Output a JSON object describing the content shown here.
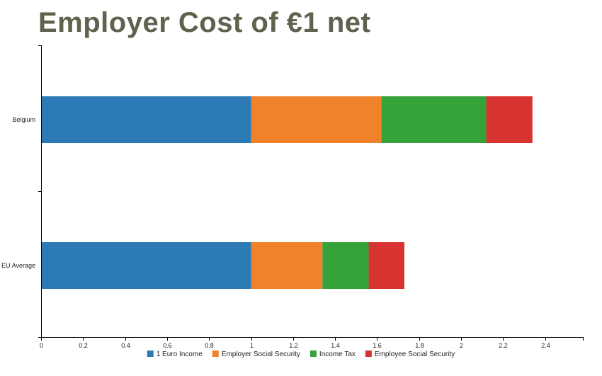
{
  "title": "Employer Cost of €1 net",
  "chart_data": {
    "type": "bar",
    "orientation": "horizontal",
    "stacked": true,
    "categories": [
      "Belgium",
      "EU Average"
    ],
    "series": [
      {
        "name": "1 Euro Income",
        "color": "#2c7bb6",
        "values": [
          1.0,
          1.0
        ]
      },
      {
        "name": "Employer Social Security",
        "color": "#f0822b",
        "values": [
          0.62,
          0.34
        ]
      },
      {
        "name": "Income Tax",
        "color": "#35a23a",
        "values": [
          0.5,
          0.22
        ]
      },
      {
        "name": "Employee Social Security",
        "color": "#d73330",
        "values": [
          0.22,
          0.17
        ]
      }
    ],
    "xlim": [
      0,
      2.58
    ],
    "xticks": [
      0,
      0.2,
      0.4,
      0.6,
      0.8,
      1,
      1.2,
      1.4,
      1.6,
      1.8,
      2,
      2.2,
      2.4
    ],
    "xtick_labels": [
      "0",
      "0.2",
      "0.4",
      "0.6",
      "0.8",
      "1",
      "1.2",
      "1.4",
      "1.6",
      "1.8",
      "2",
      "2.2",
      "2.4"
    ],
    "grid": false,
    "legend": "bottom"
  }
}
